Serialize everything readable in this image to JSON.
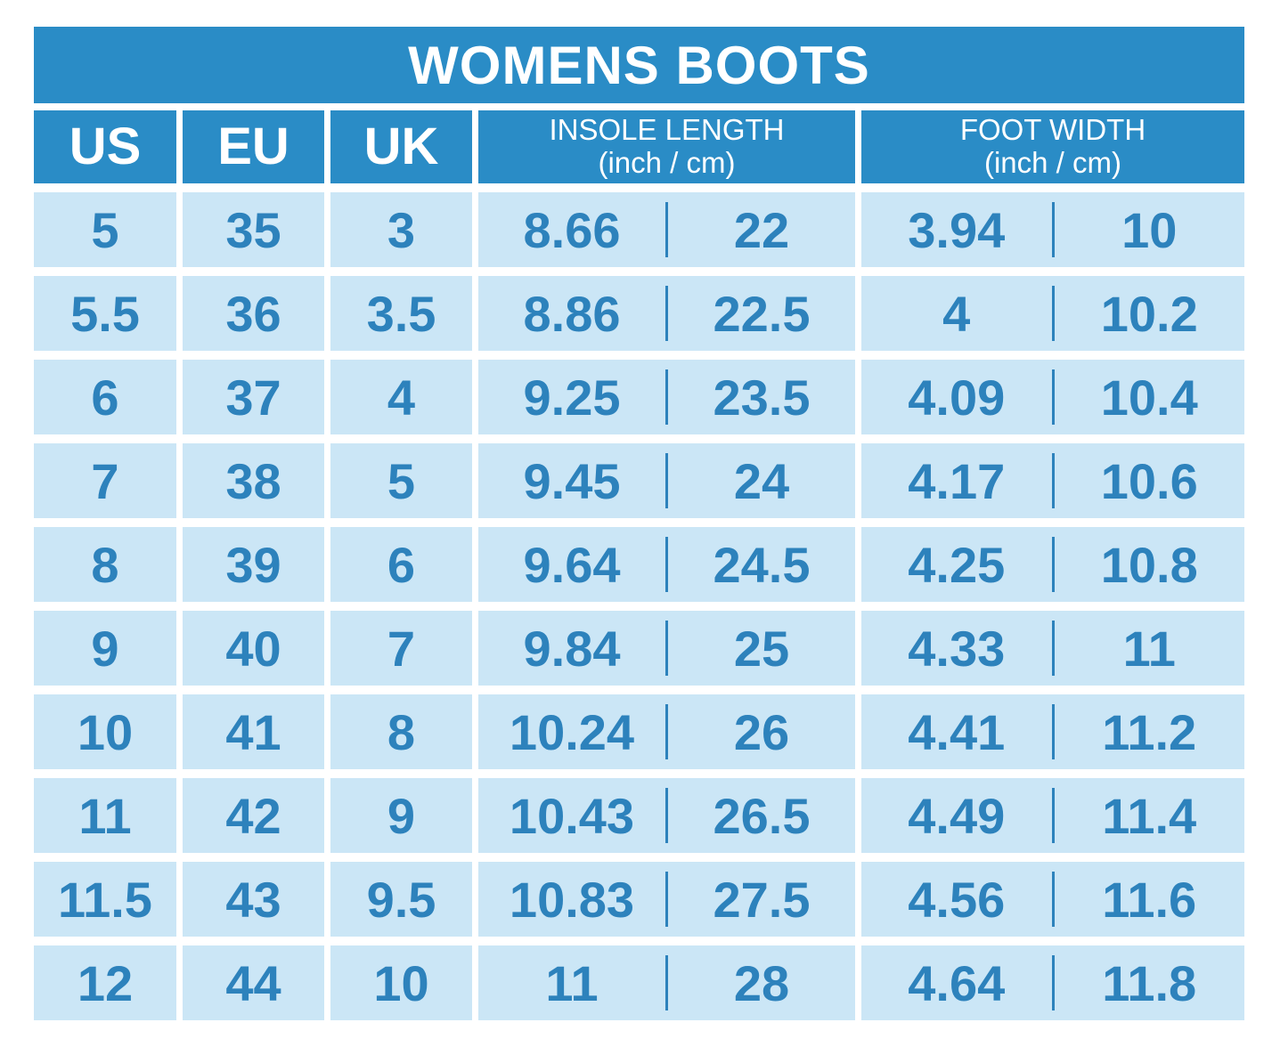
{
  "header": {
    "us": "US",
    "eu": "EU",
    "uk": "UK",
    "insole_label": "INSOLE LENGTH",
    "insole_sublabel": "(inch / cm)",
    "foot_width_label": "FOOT WIDTH",
    "foot_width_sublabel": "(inch / cm)"
  },
  "colors": {
    "header_blue": "#2a8cc6",
    "cell_light_blue": "#cbe6f6",
    "value_text_blue": "#2d82bc",
    "title_text": "#ffffff",
    "background": "#ffffff"
  },
  "chart_data": {
    "type": "table",
    "title": "WOMENS BOOTS",
    "columns": [
      "US",
      "EU",
      "UK",
      "INSOLE LENGTH (inch / cm)",
      "FOOT WIDTH (inch / cm)"
    ],
    "rows": [
      [
        "5",
        "35",
        "3",
        "8.66",
        "22",
        "3.94",
        "10"
      ],
      [
        "5.5",
        "36",
        "3.5",
        "8.86",
        "22.5",
        "4",
        "10.2"
      ],
      [
        "6",
        "37",
        "4",
        "9.25",
        "23.5",
        "4.09",
        "10.4"
      ],
      [
        "7",
        "38",
        "5",
        "9.45",
        "24",
        "4.17",
        "10.6"
      ],
      [
        "8",
        "39",
        "6",
        "9.64",
        "24.5",
        "4.25",
        "10.8"
      ],
      [
        "9",
        "40",
        "7",
        "9.84",
        "25",
        "4.33",
        "11"
      ],
      [
        "10",
        "41",
        "8",
        "10.24",
        "26",
        "4.41",
        "11.2"
      ],
      [
        "11",
        "42",
        "9",
        "10.43",
        "26.5",
        "4.49",
        "11.4"
      ],
      [
        "11.5",
        "43",
        "9.5",
        "10.83",
        "27.5",
        "4.56",
        "11.6"
      ],
      [
        "12",
        "44",
        "10",
        "11",
        "28",
        "4.64",
        "11.8"
      ]
    ]
  }
}
